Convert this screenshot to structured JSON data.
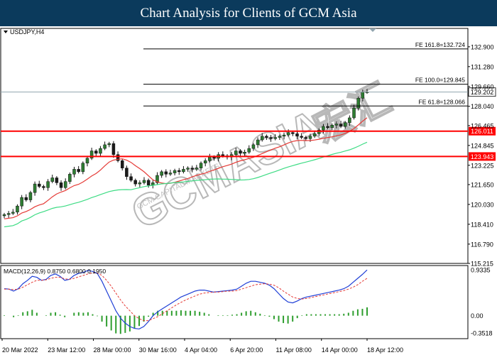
{
  "banner": {
    "title": "Chart Analysis for Clients of GCM Asia",
    "color": "#0b3a5c"
  },
  "watermark": {
    "text": "GCMASIA",
    "subtext": "GCM CAPITAL MARKETS",
    "chinese": "宏汇"
  },
  "chart_data": {
    "type": "candlestick",
    "symbol_label": "USDJPY,H4",
    "colors": {
      "up": "#2e7d32",
      "down": "#1b1b1b",
      "sma_fast": "#e53935",
      "sma_slow": "#3ddc84",
      "support": "#ff0000",
      "fib": "#000000",
      "last_price": "#90a4ae",
      "macd_line": "#1f3fd6",
      "signal_line": "#e53935",
      "histogram": "#2e9e2e"
    },
    "price_axis": {
      "min": 115.215,
      "max": 134.4,
      "ticks": [
        "132.900",
        "131.280",
        "129.660",
        "128.040",
        "126.465",
        "124.845",
        "123.225",
        "121.650",
        "120.030",
        "118.410",
        "116.790",
        "115.215"
      ]
    },
    "time_labels": [
      "20 Mar 2022",
      "23 Mar 12:00",
      "28 Mar 00:00",
      "30 Mar 16:00",
      "4 Apr 04:00",
      "6 Apr 20:00",
      "11 Apr 08:00",
      "14 Apr 00:00",
      "18 Apr 12:00"
    ],
    "closes": [
      119.2,
      119.3,
      119.4,
      119.9,
      120.6,
      120.4,
      121.0,
      121.7,
      121.5,
      121.4,
      121.9,
      122.2,
      121.8,
      121.4,
      121.9,
      122.5,
      122.9,
      122.7,
      123.4,
      123.8,
      124.4,
      124.2,
      124.6,
      124.9,
      125.0,
      124.1,
      123.6,
      123.0,
      122.3,
      122.0,
      121.7,
      121.8,
      122.0,
      121.6,
      121.8,
      122.4,
      122.7,
      122.5,
      122.6,
      122.8,
      122.7,
      122.9,
      123.0,
      122.9,
      123.0,
      123.4,
      123.6,
      123.9,
      123.8,
      124.1,
      124.0,
      123.9,
      124.1,
      124.4,
      124.2,
      124.3,
      124.6,
      124.9,
      125.3,
      125.6,
      125.5,
      125.4,
      125.5,
      125.6,
      125.7,
      125.9,
      125.8,
      125.6,
      125.5,
      125.4,
      125.6,
      125.8,
      126.1,
      126.4,
      126.3,
      126.5,
      126.6,
      126.4,
      126.7,
      127.1,
      127.9,
      128.7,
      129.2,
      129.202
    ],
    "fibonacci": [
      {
        "label": "FE 161.8=132.724",
        "value": 132.724
      },
      {
        "label": "FE 100.0=129.845",
        "value": 129.845
      },
      {
        "label": "FE 61.8=128.066",
        "value": 128.066
      }
    ],
    "support_levels": [
      {
        "label": "126.011",
        "value": 126.011
      },
      {
        "label": "123.943",
        "value": 123.943
      }
    ],
    "last_price": {
      "label": "129.202",
      "value": 129.202
    },
    "macd": {
      "label": "MACD(12,26,9) 0.8750 0.6800 0.1950",
      "axis_ticks": [
        "0.9335",
        "0.00",
        "-0.3518"
      ],
      "axis_min": -0.3518,
      "axis_max": 0.9335,
      "macd_line": [
        0.55,
        0.54,
        0.5,
        0.55,
        0.65,
        0.72,
        0.8,
        0.78,
        0.72,
        0.74,
        0.82,
        0.85,
        0.8,
        0.72,
        0.74,
        0.82,
        0.86,
        0.88,
        0.92,
        0.9,
        0.86,
        0.7,
        0.5,
        0.3,
        0.1,
        -0.05,
        -0.15,
        -0.22,
        -0.26,
        -0.27,
        -0.22,
        -0.12,
        0.0,
        0.08,
        0.14,
        0.2,
        0.26,
        0.32,
        0.38,
        0.42,
        0.46,
        0.5,
        0.52,
        0.52,
        0.5,
        0.48,
        0.49,
        0.5,
        0.51,
        0.52,
        0.54,
        0.6,
        0.66,
        0.7,
        0.7,
        0.68,
        0.66,
        0.62,
        0.55,
        0.45,
        0.35,
        0.28,
        0.26,
        0.3,
        0.35,
        0.38,
        0.4,
        0.42,
        0.44,
        0.46,
        0.48,
        0.5,
        0.52,
        0.55,
        0.6,
        0.68,
        0.76,
        0.84,
        0.93
      ],
      "signal_line": [
        0.54,
        0.54,
        0.53,
        0.54,
        0.58,
        0.63,
        0.68,
        0.72,
        0.72,
        0.73,
        0.76,
        0.78,
        0.78,
        0.75,
        0.74,
        0.76,
        0.79,
        0.82,
        0.85,
        0.87,
        0.87,
        0.82,
        0.72,
        0.6,
        0.46,
        0.32,
        0.2,
        0.1,
        0.0,
        -0.06,
        -0.1,
        -0.1,
        -0.06,
        -0.02,
        0.04,
        0.1,
        0.16,
        0.22,
        0.27,
        0.32,
        0.36,
        0.4,
        0.44,
        0.46,
        0.47,
        0.48,
        0.48,
        0.49,
        0.5,
        0.5,
        0.51,
        0.54,
        0.57,
        0.6,
        0.63,
        0.64,
        0.65,
        0.64,
        0.62,
        0.57,
        0.5,
        0.44,
        0.38,
        0.35,
        0.34,
        0.35,
        0.37,
        0.39,
        0.41,
        0.43,
        0.45,
        0.47,
        0.49,
        0.51,
        0.54,
        0.58,
        0.63,
        0.7,
        0.76
      ]
    }
  }
}
